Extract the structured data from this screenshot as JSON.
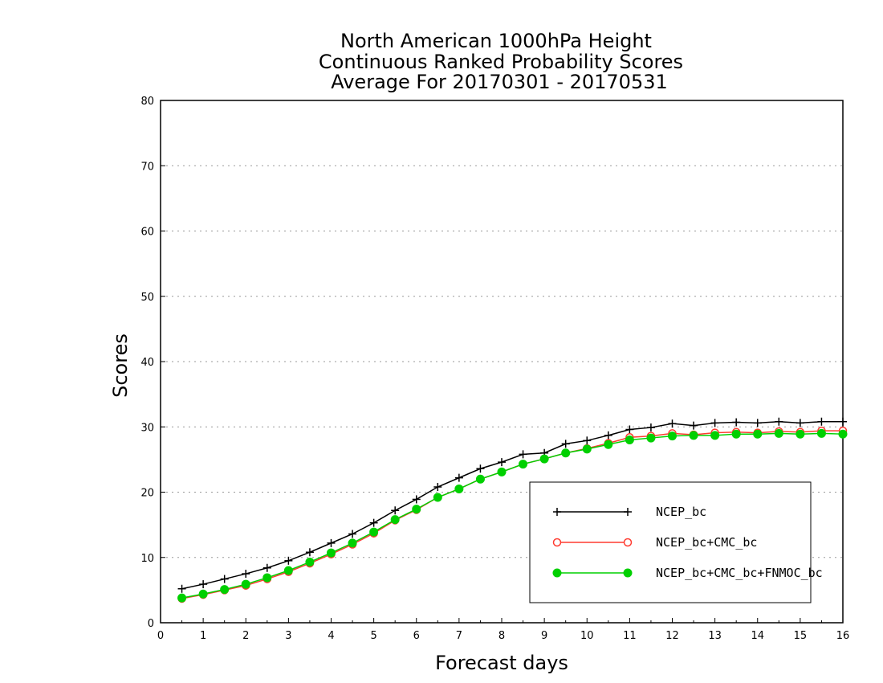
{
  "chart_data": {
    "type": "line",
    "title_lines": [
      "North American 1000hPa Height",
      "Continuous Ranked Probability Scores",
      "Average For 20170301 - 20170531"
    ],
    "xlabel": "Forecast days",
    "ylabel": "Scores",
    "xlim": [
      0,
      16
    ],
    "ylim": [
      0,
      80
    ],
    "x_ticks": [
      0,
      1,
      2,
      3,
      4,
      5,
      6,
      7,
      8,
      9,
      10,
      11,
      12,
      13,
      14,
      15,
      16
    ],
    "y_ticks": [
      0,
      10,
      20,
      30,
      40,
      50,
      60,
      70,
      80
    ],
    "grid": "horizontal dotted",
    "legend_position": "lower-right",
    "x": [
      0.5,
      1,
      1.5,
      2,
      2.5,
      3,
      3.5,
      4,
      4.5,
      5,
      5.5,
      6,
      6.5,
      7,
      7.5,
      8,
      8.5,
      9,
      9.5,
      10,
      10.5,
      11,
      11.5,
      12,
      12.5,
      13,
      13.5,
      14,
      14.5,
      15,
      15.5,
      16
    ],
    "series": [
      {
        "name": "NCEP_bc",
        "color": "#000000",
        "marker": "plus",
        "values": [
          5.2,
          5.9,
          6.7,
          7.5,
          8.4,
          9.5,
          10.8,
          12.2,
          13.6,
          15.3,
          17.2,
          18.9,
          20.8,
          22.2,
          23.6,
          24.6,
          25.8,
          26.0,
          27.4,
          27.9,
          28.7,
          29.6,
          29.9,
          30.5,
          30.2,
          30.6,
          30.7,
          30.6,
          30.8,
          30.6,
          30.8,
          30.8
        ]
      },
      {
        "name": "NCEP_bc+CMC_bc",
        "color": "#ff3b30",
        "marker": "open-circle",
        "values": [
          3.7,
          4.3,
          5.0,
          5.7,
          6.7,
          7.8,
          9.1,
          10.5,
          12.0,
          13.7,
          15.7,
          17.3,
          19.2,
          20.5,
          22.0,
          23.1,
          24.3,
          25.1,
          26.0,
          26.7,
          27.5,
          28.4,
          28.6,
          29.0,
          28.8,
          29.1,
          29.2,
          29.1,
          29.3,
          29.2,
          29.4,
          29.4
        ]
      },
      {
        "name": "NCEP_bc+CMC_bc+FNMOC_bc",
        "color": "#00d000",
        "marker": "filled-circle",
        "values": [
          3.8,
          4.4,
          5.1,
          5.9,
          6.9,
          8.0,
          9.3,
          10.7,
          12.2,
          13.9,
          15.8,
          17.4,
          19.2,
          20.5,
          22.0,
          23.1,
          24.3,
          25.1,
          26.0,
          26.6,
          27.3,
          28.0,
          28.3,
          28.6,
          28.7,
          28.7,
          28.9,
          28.9,
          29.0,
          28.9,
          29.0,
          28.9
        ]
      }
    ]
  }
}
